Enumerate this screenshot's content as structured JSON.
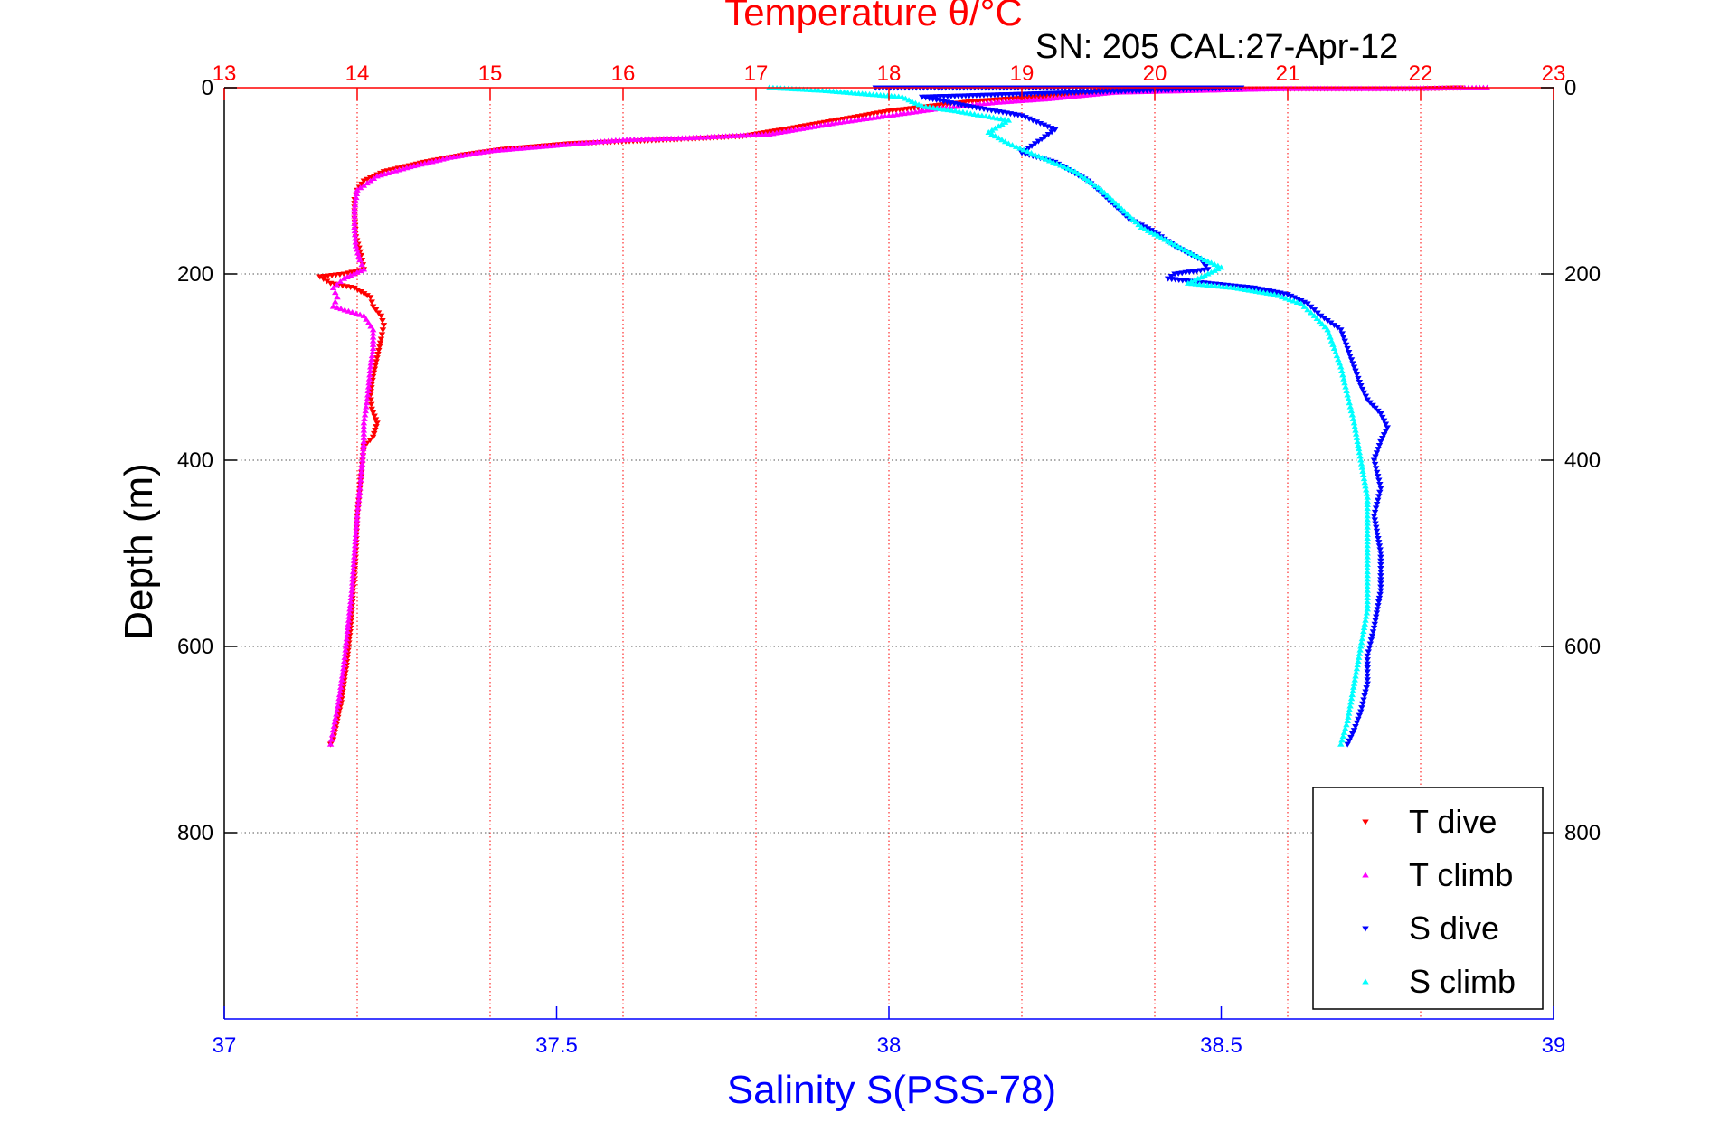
{
  "chart_data": {
    "type": "scatter",
    "title": "Temperature θ/°C",
    "subtitle": "SN: 205  CAL:27-Apr-12",
    "xlabel": "Salinity S(PSS-78)",
    "ylabel": "Depth (m)",
    "top_axis": {
      "label": "Temperature θ/°C",
      "range": [
        13,
        23
      ],
      "ticks": [
        "13",
        "14",
        "15",
        "16",
        "17",
        "18",
        "19",
        "20",
        "21",
        "22",
        "23"
      ]
    },
    "bottom_axis": {
      "label": "Salinity S(PSS-78)",
      "range": [
        37,
        39
      ],
      "ticks": [
        "37",
        "37.5",
        "38",
        "38.5",
        "39"
      ]
    },
    "y_axis": {
      "label": "Depth (m)",
      "range": [
        0,
        1000
      ],
      "reversed": true,
      "ticks": [
        "0",
        "200",
        "400",
        "600",
        "800"
      ]
    },
    "grid": true,
    "legend_position": "bottom-right",
    "colors": {
      "temperature_axis": "#ff0000",
      "salinity_axis": "#0000ff"
    },
    "series": [
      {
        "name": "T dive",
        "color": "#ff0000",
        "marker": "triangle-down",
        "axis": "temperature",
        "points": [
          [
            22.3,
            0
          ],
          [
            22.0,
            1
          ],
          [
            21.5,
            1
          ],
          [
            20.8,
            1
          ],
          [
            19.6,
            3
          ],
          [
            19.1,
            10
          ],
          [
            18.6,
            15
          ],
          [
            18.3,
            20
          ],
          [
            18.0,
            25
          ],
          [
            17.6,
            35
          ],
          [
            17.2,
            45
          ],
          [
            16.9,
            52
          ],
          [
            16.3,
            56
          ],
          [
            15.6,
            60
          ],
          [
            15.1,
            66
          ],
          [
            14.8,
            72
          ],
          [
            14.5,
            80
          ],
          [
            14.2,
            90
          ],
          [
            14.05,
            100
          ],
          [
            14.0,
            110
          ],
          [
            13.98,
            120
          ],
          [
            13.98,
            140
          ],
          [
            13.99,
            160
          ],
          [
            14.03,
            180
          ],
          [
            14.05,
            195
          ],
          [
            13.9,
            200
          ],
          [
            13.72,
            203
          ],
          [
            13.8,
            210
          ],
          [
            13.98,
            215
          ],
          [
            14.1,
            225
          ],
          [
            14.12,
            235
          ],
          [
            14.18,
            245
          ],
          [
            14.2,
            255
          ],
          [
            14.18,
            270
          ],
          [
            14.15,
            290
          ],
          [
            14.12,
            310
          ],
          [
            14.1,
            330
          ],
          [
            14.11,
            345
          ],
          [
            14.15,
            360
          ],
          [
            14.12,
            375
          ],
          [
            14.05,
            385
          ],
          [
            14.04,
            400
          ],
          [
            14.02,
            430
          ],
          [
            14.0,
            460
          ],
          [
            13.99,
            500
          ],
          [
            13.97,
            540
          ],
          [
            13.95,
            580
          ],
          [
            13.92,
            620
          ],
          [
            13.88,
            660
          ],
          [
            13.85,
            680
          ],
          [
            13.82,
            700
          ],
          [
            13.8,
            705
          ]
        ]
      },
      {
        "name": "T climb",
        "color": "#ff00ff",
        "marker": "triangle-up",
        "axis": "temperature",
        "points": [
          [
            22.5,
            0
          ],
          [
            21.8,
            1
          ],
          [
            21.0,
            1
          ],
          [
            19.7,
            5
          ],
          [
            19.2,
            12
          ],
          [
            18.8,
            16
          ],
          [
            18.4,
            22
          ],
          [
            18.0,
            30
          ],
          [
            17.6,
            38
          ],
          [
            17.1,
            50
          ],
          [
            16.5,
            54
          ],
          [
            16.0,
            56
          ],
          [
            15.5,
            62
          ],
          [
            15.0,
            68
          ],
          [
            14.7,
            75
          ],
          [
            14.4,
            85
          ],
          [
            14.15,
            95
          ],
          [
            14.0,
            110
          ],
          [
            13.98,
            130
          ],
          [
            13.98,
            150
          ],
          [
            13.99,
            170
          ],
          [
            14.02,
            185
          ],
          [
            14.05,
            195
          ],
          [
            13.9,
            205
          ],
          [
            13.82,
            215
          ],
          [
            13.85,
            225
          ],
          [
            13.82,
            235
          ],
          [
            14.05,
            245
          ],
          [
            14.12,
            260
          ],
          [
            14.12,
            280
          ],
          [
            14.1,
            300
          ],
          [
            14.08,
            330
          ],
          [
            14.05,
            360
          ],
          [
            14.05,
            380
          ],
          [
            14.04,
            400
          ],
          [
            14.02,
            430
          ],
          [
            14.0,
            460
          ],
          [
            13.98,
            500
          ],
          [
            13.96,
            540
          ],
          [
            13.93,
            580
          ],
          [
            13.9,
            620
          ],
          [
            13.86,
            660
          ],
          [
            13.82,
            690
          ],
          [
            13.8,
            705
          ]
        ]
      },
      {
        "name": "S dive",
        "color": "#0000ff",
        "marker": "triangle-down",
        "axis": "salinity",
        "points": [
          [
            37.98,
            0
          ],
          [
            38.08,
            0
          ],
          [
            38.26,
            0
          ],
          [
            38.53,
            0
          ],
          [
            38.05,
            10
          ],
          [
            38.12,
            20
          ],
          [
            38.2,
            30
          ],
          [
            38.25,
            45
          ],
          [
            38.22,
            60
          ],
          [
            38.2,
            70
          ],
          [
            38.25,
            80
          ],
          [
            38.3,
            100
          ],
          [
            38.33,
            120
          ],
          [
            38.36,
            140
          ],
          [
            38.4,
            155
          ],
          [
            38.43,
            170
          ],
          [
            38.47,
            185
          ],
          [
            38.48,
            195
          ],
          [
            38.43,
            200
          ],
          [
            38.42,
            205
          ],
          [
            38.48,
            210
          ],
          [
            38.55,
            215
          ],
          [
            38.6,
            222
          ],
          [
            38.63,
            232
          ],
          [
            38.65,
            245
          ],
          [
            38.68,
            260
          ],
          [
            38.69,
            280
          ],
          [
            38.7,
            300
          ],
          [
            38.71,
            320
          ],
          [
            38.72,
            335
          ],
          [
            38.74,
            350
          ],
          [
            38.75,
            365
          ],
          [
            38.74,
            380
          ],
          [
            38.73,
            400
          ],
          [
            38.74,
            430
          ],
          [
            38.73,
            460
          ],
          [
            38.74,
            500
          ],
          [
            38.74,
            540
          ],
          [
            38.73,
            580
          ],
          [
            38.72,
            610
          ],
          [
            38.72,
            640
          ],
          [
            38.71,
            670
          ],
          [
            38.7,
            690
          ],
          [
            38.69,
            705
          ]
        ]
      },
      {
        "name": "S climb",
        "color": "#00ffff",
        "marker": "triangle-up",
        "axis": "salinity",
        "points": [
          [
            37.82,
            0
          ],
          [
            37.9,
            3
          ],
          [
            38.02,
            10
          ],
          [
            38.05,
            20
          ],
          [
            38.1,
            25
          ],
          [
            38.18,
            35
          ],
          [
            38.15,
            48
          ],
          [
            38.18,
            60
          ],
          [
            38.22,
            72
          ],
          [
            38.28,
            90
          ],
          [
            38.32,
            110
          ],
          [
            38.35,
            130
          ],
          [
            38.38,
            150
          ],
          [
            38.42,
            165
          ],
          [
            38.46,
            180
          ],
          [
            38.5,
            193
          ],
          [
            38.48,
            200
          ],
          [
            38.45,
            210
          ],
          [
            38.52,
            215
          ],
          [
            38.58,
            222
          ],
          [
            38.62,
            232
          ],
          [
            38.64,
            245
          ],
          [
            38.66,
            260
          ],
          [
            38.67,
            280
          ],
          [
            38.68,
            300
          ],
          [
            38.69,
            330
          ],
          [
            38.7,
            360
          ],
          [
            38.71,
            400
          ],
          [
            38.72,
            440
          ],
          [
            38.72,
            480
          ],
          [
            38.72,
            520
          ],
          [
            38.72,
            560
          ],
          [
            38.71,
            600
          ],
          [
            38.7,
            640
          ],
          [
            38.69,
            680
          ],
          [
            38.68,
            705
          ]
        ]
      }
    ]
  }
}
